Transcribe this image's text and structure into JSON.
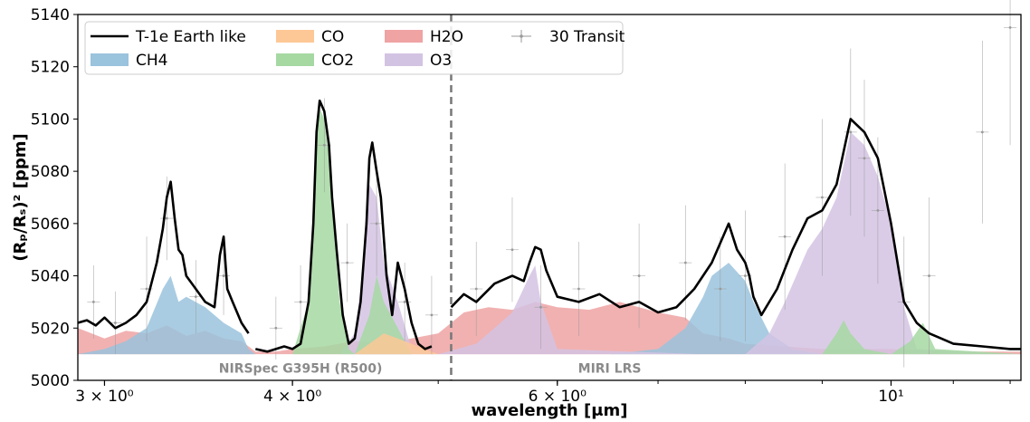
{
  "chart_data": {
    "type": "area",
    "xlabel": "wavelength [μm]",
    "ylabel": "(Rₚ/Rₛ)² [ppm]",
    "xscale": "log",
    "xlim": [
      2.88,
      12.2
    ],
    "ylim": [
      5000,
      5140
    ],
    "x_tick_labels": [
      {
        "value": 3,
        "label": "3 × 10⁰"
      },
      {
        "value": 4,
        "label": "4 × 10⁰"
      },
      {
        "value": 6,
        "label": "6 × 10⁰"
      },
      {
        "value": 10,
        "label": "10¹"
      }
    ],
    "y_ticks": [
      5000,
      5020,
      5040,
      5060,
      5080,
      5100,
      5120,
      5140
    ],
    "grid": false,
    "legend_position": "top-left",
    "divider_x": 5.1,
    "annotations": [
      {
        "text": "NIRSpec G395H (R500)",
        "x": 4.05,
        "y": 5004
      },
      {
        "text": "MIRI LRS",
        "x": 6.5,
        "y": 5004
      }
    ],
    "colors": {
      "model": "#000000",
      "CH4": "#9ac3dd",
      "CO": "#fdc896",
      "CO2": "#a6d8a2",
      "H2O": "#efa3a3",
      "O3": "#d3c3e3",
      "errorbar": "#9a9a9a",
      "divider": "#777777"
    },
    "legend": [
      {
        "label": "T-1e Earth like",
        "kind": "line",
        "color_key": "model"
      },
      {
        "label": "CH4",
        "kind": "patch",
        "color_key": "CH4"
      },
      {
        "label": "CO",
        "kind": "patch",
        "color_key": "CO"
      },
      {
        "label": "CO2",
        "kind": "patch",
        "color_key": "CO2"
      },
      {
        "label": "H2O",
        "kind": "patch",
        "color_key": "H2O"
      },
      {
        "label": "O3",
        "kind": "patch",
        "color_key": "O3"
      },
      {
        "label": "30 Transit",
        "kind": "errorbar",
        "color_key": "errorbar"
      }
    ],
    "series": [
      {
        "name": "T-1e Earth like",
        "kind": "line",
        "segments": [
          {
            "x": [
              2.88,
              2.92,
              2.96,
              3.0,
              3.05,
              3.1,
              3.15,
              3.2,
              3.25,
              3.28,
              3.3,
              3.32,
              3.34,
              3.36,
              3.38,
              3.4,
              3.45,
              3.5,
              3.55,
              3.58,
              3.6,
              3.62,
              3.65,
              3.7,
              3.74
            ],
            "y": [
              5022,
              5023,
              5021,
              5024,
              5020,
              5022,
              5025,
              5030,
              5045,
              5058,
              5070,
              5076,
              5062,
              5050,
              5048,
              5040,
              5035,
              5030,
              5028,
              5048,
              5055,
              5035,
              5030,
              5022,
              5018
            ]
          },
          {
            "x": [
              3.78,
              3.85,
              3.9,
              3.95,
              4.0,
              4.05,
              4.1,
              4.13,
              4.15,
              4.17,
              4.2,
              4.23,
              4.25,
              4.28,
              4.32,
              4.36,
              4.4,
              4.44,
              4.48,
              4.5,
              4.52,
              4.55,
              4.58,
              4.62,
              4.66,
              4.7,
              4.75,
              4.8,
              4.85,
              4.9,
              4.95
            ],
            "y": [
              5012,
              5011,
              5012,
              5013,
              5012,
              5014,
              5030,
              5060,
              5095,
              5107,
              5103,
              5090,
              5070,
              5050,
              5025,
              5014,
              5016,
              5030,
              5060,
              5085,
              5091,
              5080,
              5070,
              5040,
              5025,
              5045,
              5035,
              5022,
              5014,
              5012,
              5013
            ]
          },
          {
            "x": [
              5.1,
              5.2,
              5.3,
              5.45,
              5.6,
              5.7,
              5.75,
              5.8,
              5.85,
              5.9,
              6.0,
              6.2,
              6.4,
              6.6,
              6.8,
              7.0,
              7.2,
              7.4,
              7.6,
              7.8,
              7.9,
              8.0,
              8.05,
              8.1,
              8.2,
              8.4,
              8.6,
              8.8,
              9.0,
              9.2,
              9.4,
              9.6,
              9.8,
              10.0,
              10.2,
              10.4,
              10.6,
              10.8,
              11.0,
              11.5,
              12.0,
              12.2
            ],
            "y": [
              5028,
              5033,
              5030,
              5037,
              5040,
              5038,
              5045,
              5051,
              5050,
              5042,
              5032,
              5030,
              5033,
              5028,
              5030,
              5026,
              5028,
              5035,
              5045,
              5060,
              5050,
              5045,
              5040,
              5032,
              5025,
              5035,
              5050,
              5062,
              5065,
              5075,
              5100,
              5095,
              5085,
              5060,
              5030,
              5022,
              5018,
              5016,
              5014,
              5013,
              5012,
              5012
            ]
          }
        ]
      },
      {
        "name": "H2O",
        "kind": "area",
        "x": [
          2.88,
          3.0,
          3.1,
          3.2,
          3.3,
          3.4,
          3.5,
          3.6,
          3.7,
          3.74,
          3.78,
          3.9,
          4.0,
          4.2,
          4.4,
          4.6,
          4.8,
          5.0,
          5.1,
          5.2,
          5.4,
          5.6,
          5.8,
          6.0,
          6.3,
          6.6,
          7.0,
          7.3,
          7.5,
          7.8,
          8.0,
          8.5,
          9.0,
          10.0,
          11.0,
          12.2
        ],
        "y": [
          5020,
          5016,
          5019,
          5018,
          5021,
          5017,
          5019,
          5016,
          5015,
          5013,
          5011,
          5011,
          5012,
          5013,
          5015,
          5014,
          5016,
          5018,
          5022,
          5026,
          5028,
          5027,
          5030,
          5028,
          5027,
          5030,
          5026,
          5024,
          5018,
          5016,
          5014,
          5013,
          5012,
          5012,
          5011,
          5011
        ]
      },
      {
        "name": "CH4",
        "kind": "area",
        "x": [
          2.88,
          3.0,
          3.1,
          3.2,
          3.28,
          3.32,
          3.36,
          3.4,
          3.5,
          3.6,
          3.7,
          3.74,
          3.78,
          4.0,
          4.5,
          5.0,
          5.5,
          6.5,
          7.0,
          7.3,
          7.5,
          7.6,
          7.8,
          8.0,
          8.1,
          8.3,
          8.6,
          9.0,
          12.2
        ],
        "y": [
          5010,
          5012,
          5015,
          5020,
          5035,
          5040,
          5030,
          5032,
          5028,
          5022,
          5018,
          5012,
          5010,
          5010,
          5010,
          5010,
          5010,
          5010,
          5012,
          5020,
          5032,
          5040,
          5045,
          5038,
          5030,
          5018,
          5012,
          5010,
          5010
        ]
      },
      {
        "name": "O3",
        "kind": "area",
        "x": [
          2.88,
          4.3,
          4.4,
          4.45,
          4.5,
          4.55,
          4.6,
          4.7,
          4.8,
          5.0,
          5.3,
          5.45,
          5.6,
          5.75,
          5.8,
          5.85,
          6.0,
          7.5,
          8.0,
          8.3,
          8.5,
          8.8,
          9.0,
          9.2,
          9.4,
          9.6,
          9.8,
          10.0,
          10.2,
          10.4,
          12.2
        ],
        "y": [
          5010,
          5010,
          5018,
          5040,
          5075,
          5070,
          5045,
          5030,
          5012,
          5010,
          5014,
          5020,
          5026,
          5040,
          5044,
          5030,
          5012,
          5010,
          5010,
          5018,
          5030,
          5050,
          5058,
          5070,
          5095,
          5090,
          5078,
          5060,
          5028,
          5012,
          5010
        ]
      },
      {
        "name": "CO2",
        "kind": "area",
        "x": [
          2.88,
          4.0,
          4.1,
          4.13,
          4.15,
          4.17,
          4.2,
          4.23,
          4.26,
          4.3,
          4.36,
          4.4,
          4.5,
          4.55,
          4.6,
          4.65,
          4.7,
          4.8,
          9.0,
          9.2,
          9.3,
          9.4,
          9.6,
          10.0,
          10.3,
          10.5,
          10.7,
          12.2
        ],
        "y": [
          5010,
          5010,
          5030,
          5070,
          5100,
          5104,
          5100,
          5085,
          5060,
          5030,
          5012,
          5010,
          5025,
          5040,
          5030,
          5025,
          5020,
          5010,
          5010,
          5018,
          5023,
          5018,
          5012,
          5010,
          5015,
          5022,
          5012,
          5010
        ]
      },
      {
        "name": "CO",
        "kind": "area",
        "x": [
          2.88,
          4.4,
          4.5,
          4.6,
          4.7,
          4.8,
          4.9,
          5.0,
          12.2
        ],
        "y": [
          5010,
          5010,
          5014,
          5018,
          5016,
          5014,
          5012,
          5010,
          5010
        ]
      },
      {
        "name": "30 Transit",
        "kind": "errorbar",
        "x": [
          2.95,
          3.05,
          3.2,
          3.3,
          3.45,
          3.6,
          3.9,
          4.05,
          4.2,
          4.35,
          4.55,
          4.75,
          4.95,
          5.3,
          5.6,
          5.85,
          6.2,
          6.8,
          7.3,
          7.7,
          8.0,
          8.5,
          9.0,
          9.4,
          9.6,
          9.8,
          10.2,
          10.6,
          11.5,
          12.0
        ],
        "y": [
          5030,
          5022,
          5035,
          5062,
          5032,
          5040,
          5020,
          5030,
          5090,
          5045,
          5060,
          5030,
          5025,
          5035,
          5050,
          5028,
          5035,
          5040,
          5045,
          5035,
          5040,
          5055,
          5070,
          5095,
          5085,
          5065,
          5030,
          5040,
          5095,
          5135
        ],
        "err": [
          14,
          12,
          20,
          16,
          14,
          15,
          12,
          14,
          18,
          15,
          20,
          15,
          15,
          18,
          20,
          16,
          18,
          20,
          22,
          20,
          25,
          28,
          30,
          32,
          30,
          28,
          25,
          30,
          35,
          45
        ]
      }
    ]
  }
}
